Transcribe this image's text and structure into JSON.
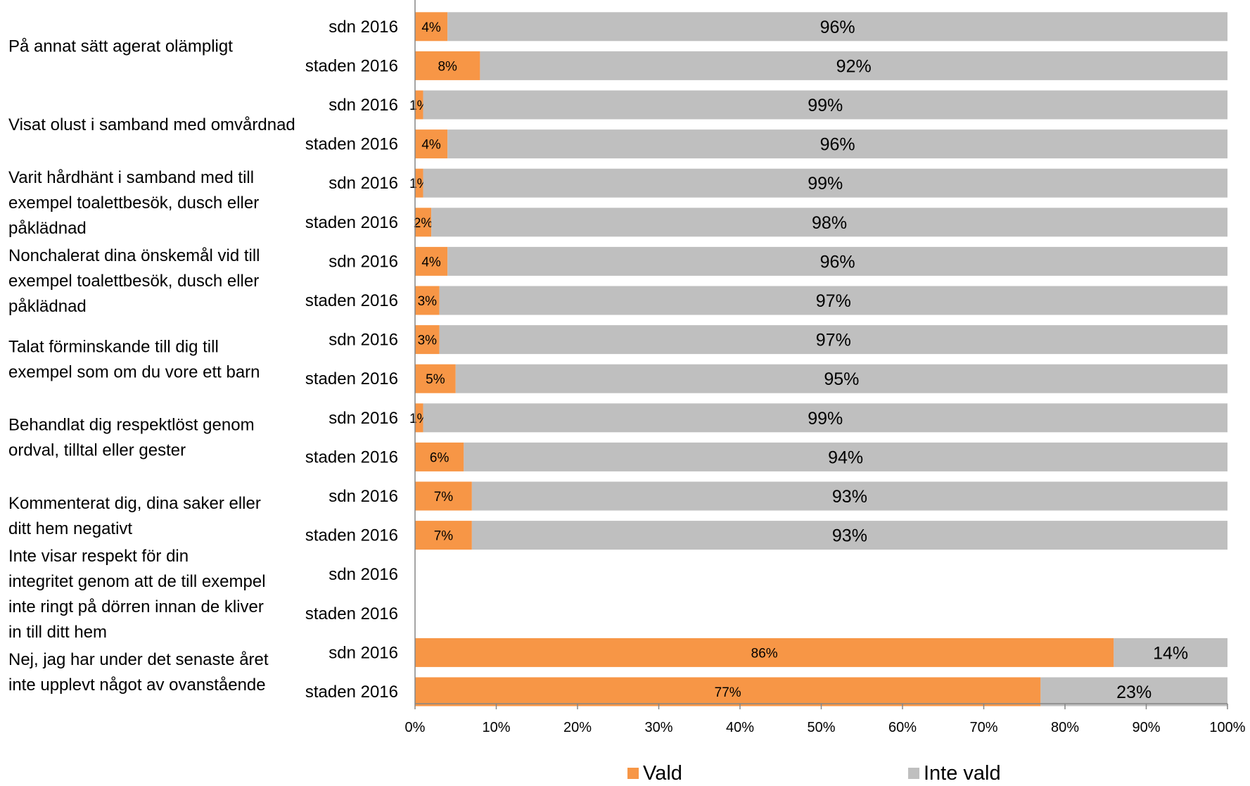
{
  "chart_data": {
    "type": "bar",
    "orientation": "horizontal",
    "stacked": true,
    "percent_stacked": true,
    "xlim": [
      0,
      100
    ],
    "x_ticks": [
      "0%",
      "10%",
      "20%",
      "30%",
      "40%",
      "50%",
      "60%",
      "70%",
      "80%",
      "90%",
      "100%"
    ],
    "legend_position": "bottom",
    "grid": false,
    "categories": [
      {
        "label": "På annat sätt agerat olämpligt",
        "rows": [
          {
            "group": "sdn 2016",
            "values": [
              4,
              96
            ],
            "labels": [
              "4%",
              "96%"
            ]
          },
          {
            "group": "staden 2016",
            "values": [
              8,
              92
            ],
            "labels": [
              "8%",
              "92%"
            ]
          }
        ]
      },
      {
        "label": "Visat olust i samband med omvårdnad",
        "rows": [
          {
            "group": "sdn 2016",
            "values": [
              1,
              99
            ],
            "labels": [
              "1%",
              "99%"
            ]
          },
          {
            "group": "staden 2016",
            "values": [
              4,
              96
            ],
            "labels": [
              "4%",
              "96%"
            ]
          }
        ]
      },
      {
        "label": "Varit hårdhänt i samband med till exempel toalettbesök, dusch eller påklädnad",
        "rows": [
          {
            "group": "sdn 2016",
            "values": [
              1,
              99
            ],
            "labels": [
              "1%",
              "99%"
            ]
          },
          {
            "group": "staden 2016",
            "values": [
              2,
              98
            ],
            "labels": [
              "2%",
              "98%"
            ]
          }
        ]
      },
      {
        "label": "Nonchalerat dina önskemål vid till exempel toalettbesök, dusch eller påklädnad",
        "rows": [
          {
            "group": "sdn 2016",
            "values": [
              4,
              96
            ],
            "labels": [
              "4%",
              "96%"
            ]
          },
          {
            "group": "staden 2016",
            "values": [
              3,
              97
            ],
            "labels": [
              "3%",
              "97%"
            ]
          }
        ]
      },
      {
        "label": "Talat förminskande till dig till exempel som om du vore ett barn",
        "rows": [
          {
            "group": "sdn 2016",
            "values": [
              3,
              97
            ],
            "labels": [
              "3%",
              "97%"
            ]
          },
          {
            "group": "staden 2016",
            "values": [
              5,
              95
            ],
            "labels": [
              "5%",
              "95%"
            ]
          }
        ]
      },
      {
        "label": "Behandlat dig respektlöst genom ordval, tilltal eller gester",
        "rows": [
          {
            "group": "sdn 2016",
            "values": [
              1,
              99
            ],
            "labels": [
              "1%",
              "99%"
            ]
          },
          {
            "group": "staden 2016",
            "values": [
              6,
              94
            ],
            "labels": [
              "6%",
              "94%"
            ]
          }
        ]
      },
      {
        "label": "Kommenterat dig, dina saker eller ditt hem negativt",
        "rows": [
          {
            "group": "sdn 2016",
            "values": [
              7,
              93
            ],
            "labels": [
              "7%",
              "93%"
            ]
          },
          {
            "group": "staden 2016",
            "values": [
              7,
              93
            ],
            "labels": [
              "7%",
              "93%"
            ]
          }
        ]
      },
      {
        "label": "Inte visar respekt för din integritet genom att de till exempel inte ringt på dörren innan de kliver in till ditt hem",
        "rows": [
          {
            "group": "sdn 2016",
            "values": null,
            "labels": [
              "",
              ""
            ]
          },
          {
            "group": "staden 2016",
            "values": null,
            "labels": [
              "",
              ""
            ]
          }
        ]
      },
      {
        "label": "Nej, jag har under det senaste året inte upplevt något av ovanstående",
        "rows": [
          {
            "group": "sdn 2016",
            "values": [
              86,
              14
            ],
            "labels": [
              "86%",
              "14%"
            ]
          },
          {
            "group": "staden 2016",
            "values": [
              77,
              23
            ],
            "labels": [
              "77%",
              "23%"
            ]
          }
        ]
      }
    ],
    "series": [
      {
        "name": "Vald",
        "color": "#f79646"
      },
      {
        "name": "Inte vald",
        "color": "#bfbfbf"
      }
    ]
  }
}
